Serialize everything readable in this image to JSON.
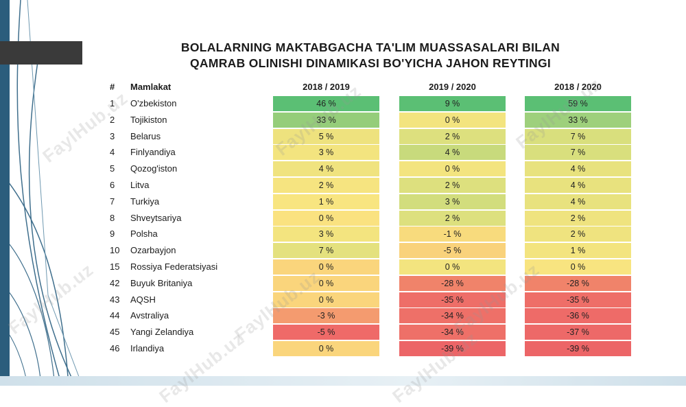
{
  "title_lines": [
    "BOLALARNING MAKTABGACHA TA'LIM MUASSASALARI BILAN",
    "QAMRAB OLINISHI DINAMIKASI BO'YICHA JAHON REYTINGI"
  ],
  "headers": [
    "#",
    "Mamlakat",
    "2018 / 2019",
    "2019 / 2020",
    "2018 / 2020"
  ],
  "rows": [
    {
      "rank": "1",
      "country": "O'zbekiston",
      "v": [
        "46 %",
        "9 %",
        "59 %"
      ],
      "c": [
        "#5bbf74",
        "#5bbf74",
        "#5bbf74"
      ]
    },
    {
      "rank": "2",
      "country": "Tojikiston",
      "v": [
        "33 %",
        "0 %",
        "33 %"
      ],
      "c": [
        "#95cd7a",
        "#f3e47f",
        "#9ed07c"
      ]
    },
    {
      "rank": "3",
      "country": "Belarus",
      "v": [
        "5 %",
        "2 %",
        "7 %"
      ],
      "c": [
        "#eee27e",
        "#dde07e",
        "#d9df7d"
      ]
    },
    {
      "rank": "4",
      "country": "Finlyandiya",
      "v": [
        "3 %",
        "4 %",
        "7 %"
      ],
      "c": [
        "#f3e47f",
        "#c8da7c",
        "#d9df7d"
      ]
    },
    {
      "rank": "5",
      "country": "Qozog'iston",
      "v": [
        "4 %",
        "0 %",
        "4 %"
      ],
      "c": [
        "#f0e37f",
        "#f3e47f",
        "#e8e27e"
      ]
    },
    {
      "rank": "6",
      "country": "Litva",
      "v": [
        "2 %",
        "2 %",
        "4 %"
      ],
      "c": [
        "#f6e480",
        "#dde07e",
        "#e8e27e"
      ]
    },
    {
      "rank": "7",
      "country": "Turkiya",
      "v": [
        "1 %",
        "3 %",
        "4 %"
      ],
      "c": [
        "#f8e580",
        "#d2dd7d",
        "#e8e27e"
      ]
    },
    {
      "rank": "8",
      "country": "Shveytsariya",
      "v": [
        "0 %",
        "2 %",
        "2 %"
      ],
      "c": [
        "#fae280",
        "#dde07e",
        "#efe37f"
      ]
    },
    {
      "rank": "9",
      "country": "Polsha",
      "v": [
        "3 %",
        "-1 %",
        "2 %"
      ],
      "c": [
        "#f3e47f",
        "#f8db7d",
        "#efe37f"
      ]
    },
    {
      "rank": "10",
      "country": "Ozarbayjon",
      "v": [
        "7 %",
        "-5 %",
        "1 %"
      ],
      "c": [
        "#e4e17e",
        "#f9d27b",
        "#f3e47f"
      ]
    },
    {
      "rank": "15",
      "country": "Rossiya Federatsiyasi",
      "v": [
        "0 %",
        "0 %",
        "0 %"
      ],
      "c": [
        "#fad57c",
        "#f3e47f",
        "#f8e480"
      ]
    },
    {
      "rank": "42",
      "country": "Buyuk Britaniya",
      "v": [
        "0 %",
        "-28 %",
        "-28 %"
      ],
      "c": [
        "#fad57c",
        "#f0836a",
        "#f0836a"
      ]
    },
    {
      "rank": "43",
      "country": "AQSH",
      "v": [
        "0 %",
        "-35 %",
        "-35 %"
      ],
      "c": [
        "#fad57c",
        "#ee6e68",
        "#ee6e68"
      ]
    },
    {
      "rank": "44",
      "country": "Avstraliya",
      "v": [
        "-3 %",
        "-34 %",
        "-36 %"
      ],
      "c": [
        "#f49b6f",
        "#ee7068",
        "#ee6b68"
      ]
    },
    {
      "rank": "45",
      "country": "Yangi Zelandiya",
      "v": [
        "-5 %",
        "-34 %",
        "-37 %"
      ],
      "c": [
        "#ef6a68",
        "#ee7068",
        "#ed6968"
      ]
    },
    {
      "rank": "46",
      "country": "Irlandiya",
      "v": [
        "0 %",
        "-39 %",
        "-39 %"
      ],
      "c": [
        "#fad57c",
        "#ec6567",
        "#ec6567"
      ]
    }
  ],
  "watermark": "FaylHub.uz"
}
